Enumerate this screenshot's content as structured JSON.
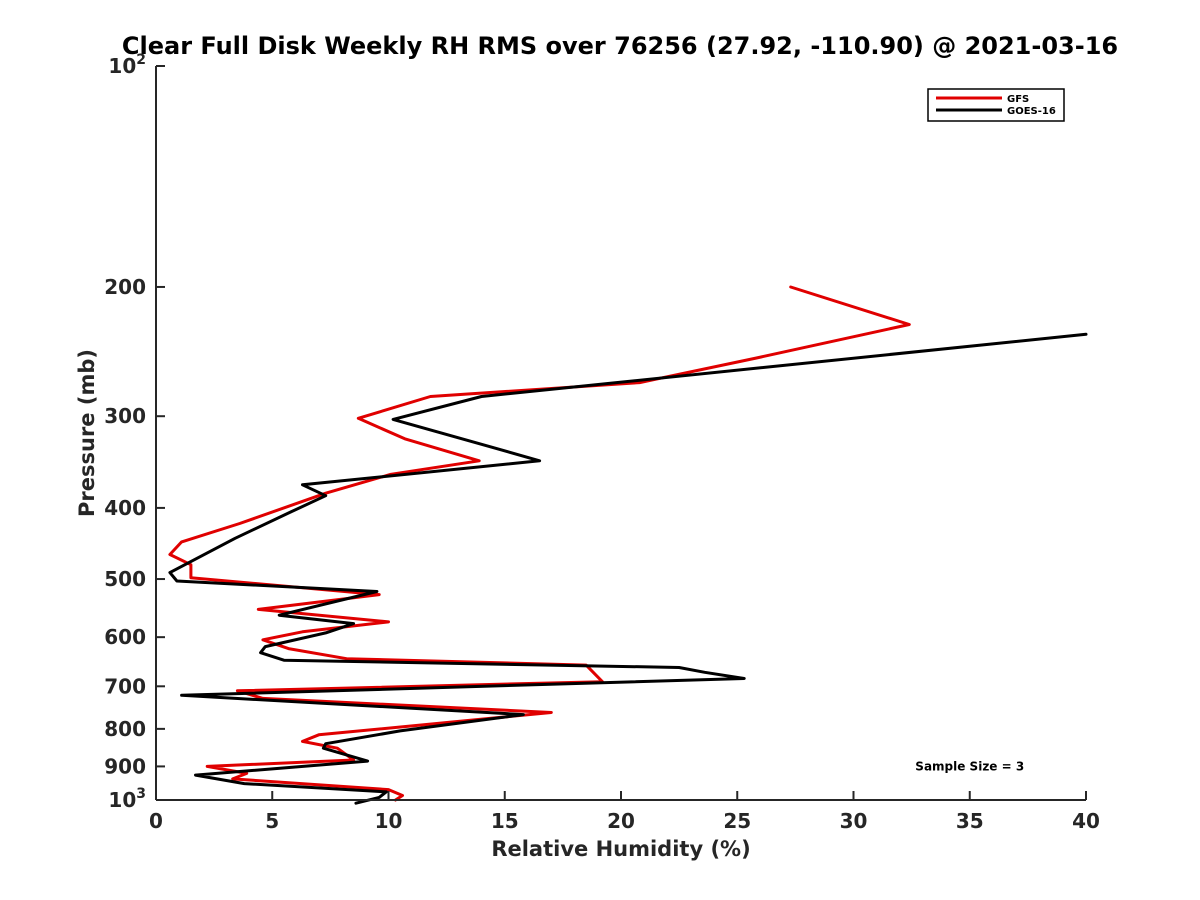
{
  "chart_data": {
    "type": "line",
    "title": "Clear Full Disk Weekly RH RMS over 76256 (27.92, -110.90) @ 2021-03-16",
    "xlabel": "Relative Humidity (%)",
    "ylabel": "Pressure (mb)",
    "xlim": [
      0,
      40
    ],
    "ylim": [
      100,
      1000
    ],
    "yscale": "log",
    "y_reversed": true,
    "grid": false,
    "legend_position": "top-right",
    "x_ticks": [
      0,
      5,
      10,
      15,
      20,
      25,
      30,
      35,
      40
    ],
    "y_ticks": [
      {
        "value": 100,
        "base": "10",
        "exp": "2"
      },
      {
        "value": 200,
        "label": "200"
      },
      {
        "value": 300,
        "label": "300"
      },
      {
        "value": 400,
        "label": "400"
      },
      {
        "value": 500,
        "label": "500"
      },
      {
        "value": 600,
        "label": "600"
      },
      {
        "value": 700,
        "label": "700"
      },
      {
        "value": 800,
        "label": "800"
      },
      {
        "value": 900,
        "label": "900"
      },
      {
        "value": 1000,
        "base": "10",
        "exp": "3"
      }
    ],
    "series": [
      {
        "name": "GFS",
        "color": "#e00000",
        "points": [
          [
            27.3,
            200
          ],
          [
            32.4,
            225
          ],
          [
            25.8,
            250
          ],
          [
            20.8,
            270
          ],
          [
            11.8,
            282
          ],
          [
            8.7,
            302
          ],
          [
            10.7,
            322
          ],
          [
            13.9,
            345
          ],
          [
            10.1,
            360
          ],
          [
            7.3,
            382
          ],
          [
            3.6,
            420
          ],
          [
            1.1,
            445
          ],
          [
            0.6,
            463
          ],
          [
            1.5,
            478
          ],
          [
            1.5,
            498
          ],
          [
            9.6,
            525
          ],
          [
            4.4,
            550
          ],
          [
            10.0,
            572
          ],
          [
            6.3,
            590
          ],
          [
            4.6,
            605
          ],
          [
            5.7,
            622
          ],
          [
            8.2,
            642
          ],
          [
            18.5,
            655
          ],
          [
            19.2,
            690
          ],
          [
            3.5,
            710
          ],
          [
            4.6,
            727
          ],
          [
            17.0,
            760
          ],
          [
            7.0,
            815
          ],
          [
            6.3,
            832
          ],
          [
            7.8,
            850
          ],
          [
            8.5,
            882
          ],
          [
            2.2,
            900
          ],
          [
            3.9,
            920
          ],
          [
            3.3,
            936
          ],
          [
            10.0,
            968
          ],
          [
            10.6,
            986
          ],
          [
            10.3,
            1000
          ]
        ]
      },
      {
        "name": "GOES-16",
        "color": "#000000",
        "points": [
          [
            40.0,
            232
          ],
          [
            14.0,
            282
          ],
          [
            10.2,
            303
          ],
          [
            14.5,
            331
          ],
          [
            16.5,
            345
          ],
          [
            6.3,
            372
          ],
          [
            7.3,
            385
          ],
          [
            5.8,
            405
          ],
          [
            3.4,
            440
          ],
          [
            0.6,
            490
          ],
          [
            0.9,
            503
          ],
          [
            9.5,
            520
          ],
          [
            5.3,
            560
          ],
          [
            8.5,
            575
          ],
          [
            7.3,
            592
          ],
          [
            4.7,
            618
          ],
          [
            4.5,
            630
          ],
          [
            5.5,
            645
          ],
          [
            22.5,
            660
          ],
          [
            23.6,
            670
          ],
          [
            25.3,
            683
          ],
          [
            1.1,
            720
          ],
          [
            15.8,
            765
          ],
          [
            10.5,
            805
          ],
          [
            7.3,
            838
          ],
          [
            7.2,
            850
          ],
          [
            9.1,
            885
          ],
          [
            1.7,
            925
          ],
          [
            3.8,
            950
          ],
          [
            9.9,
            975
          ],
          [
            9.6,
            992
          ],
          [
            8.6,
            1010
          ]
        ]
      }
    ],
    "annotations": [
      {
        "text": "Sample Size = 3",
        "x": 35,
        "y": 900
      }
    ]
  }
}
